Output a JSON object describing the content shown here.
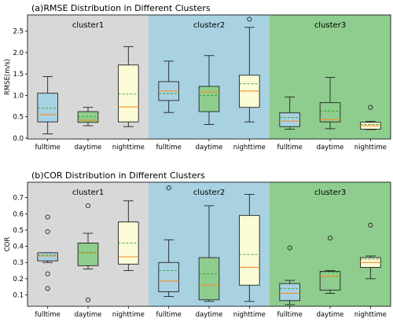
{
  "chart_data": [
    {
      "type": "boxplot",
      "title": "(a)RMSE Distribution in Different Clusters",
      "ylabel": "RMSE(m/s)",
      "ylim": [
        -0.02,
        2.88
      ],
      "yticks": [
        "0.0",
        "0.5",
        "1.0",
        "1.5",
        "2.0",
        "2.5"
      ],
      "categories": [
        "fulltime",
        "daytime",
        "nighttime",
        "fulltime",
        "daytime",
        "nighttime",
        "fulltime",
        "daytime",
        "nighttime"
      ],
      "clusters": [
        {
          "name": "cluster1",
          "background": "#d8d8d8"
        },
        {
          "name": "cluster2",
          "background": "#a8d2e2"
        },
        {
          "name": "cluster3",
          "background": "#8ecd8e"
        }
      ],
      "box_colors": [
        "#a8d2e2",
        "#8ecd8e",
        "#fbfbd6",
        "#a8d2e2",
        "#8ecd8e",
        "#fbfbd6",
        "#a8d2e2",
        "#8ecd8e",
        "#fbfbd6"
      ],
      "boxes": [
        {
          "whislo": 0.1,
          "q1": 0.38,
          "med": 0.55,
          "q3": 1.05,
          "whishi": 1.44,
          "mean": 0.7,
          "fliers": []
        },
        {
          "whislo": 0.29,
          "q1": 0.37,
          "med": 0.42,
          "q3": 0.62,
          "whishi": 0.72,
          "mean": 0.5,
          "fliers": []
        },
        {
          "whislo": 0.27,
          "q1": 0.38,
          "med": 0.73,
          "q3": 1.71,
          "whishi": 2.14,
          "mean": 1.03,
          "fliers": []
        },
        {
          "whislo": 0.6,
          "q1": 0.88,
          "med": 1.1,
          "q3": 1.32,
          "whishi": 1.8,
          "mean": 1.04,
          "fliers": []
        },
        {
          "whislo": 0.32,
          "q1": 0.62,
          "med": 1.08,
          "q3": 1.21,
          "whishi": 1.93,
          "mean": 1.0,
          "fliers": []
        },
        {
          "whislo": 0.38,
          "q1": 0.72,
          "med": 1.1,
          "q3": 1.47,
          "whishi": 2.59,
          "mean": 1.27,
          "fliers": [
            2.78
          ]
        },
        {
          "whislo": 0.21,
          "q1": 0.27,
          "med": 0.4,
          "q3": 0.59,
          "whishi": 0.96,
          "mean": 0.48,
          "fliers": []
        },
        {
          "whislo": 0.22,
          "q1": 0.38,
          "med": 0.43,
          "q3": 0.83,
          "whishi": 1.42,
          "mean": 0.63,
          "fliers": []
        },
        {
          "whislo": 0.2,
          "q1": 0.21,
          "med": 0.29,
          "q3": 0.37,
          "whishi": 0.39,
          "mean": 0.32,
          "fliers": [
            0.72
          ]
        }
      ]
    },
    {
      "type": "boxplot",
      "title": "(b)COR Distribution in Different Clusters",
      "ylabel": "COR",
      "ylim": [
        0.03,
        0.795
      ],
      "yticks": [
        "0.1",
        "0.2",
        "0.3",
        "0.4",
        "0.5",
        "0.6",
        "0.7"
      ],
      "categories": [
        "fulltime",
        "daytime",
        "nighttime",
        "fulltime",
        "daytime",
        "nighttime",
        "fulltime",
        "daytime",
        "nighttime"
      ],
      "clusters": [
        {
          "name": "cluster1",
          "background": "#d8d8d8"
        },
        {
          "name": "cluster2",
          "background": "#a8d2e2"
        },
        {
          "name": "cluster3",
          "background": "#8ecd8e"
        }
      ],
      "box_colors": [
        "#a8d2e2",
        "#8ecd8e",
        "#fbfbd6",
        "#a8d2e2",
        "#8ecd8e",
        "#fbfbd6",
        "#a8d2e2",
        "#8ecd8e",
        "#fbfbd6"
      ],
      "boxes": [
        {
          "whislo": 0.3,
          "q1": 0.31,
          "med": 0.34,
          "q3": 0.36,
          "whishi": 0.36,
          "mean": 0.345,
          "fliers": [
            0.58,
            0.49,
            0.23,
            0.14
          ]
        },
        {
          "whislo": 0.26,
          "q1": 0.28,
          "med": 0.36,
          "q3": 0.42,
          "whishi": 0.48,
          "mean": 0.36,
          "fliers": [
            0.65,
            0.07
          ]
        },
        {
          "whislo": 0.25,
          "q1": 0.29,
          "med": 0.335,
          "q3": 0.55,
          "whishi": 0.68,
          "mean": 0.42,
          "fliers": []
        },
        {
          "whislo": 0.09,
          "q1": 0.12,
          "med": 0.185,
          "q3": 0.3,
          "whishi": 0.44,
          "mean": 0.25,
          "fliers": [
            0.76
          ]
        },
        {
          "whislo": 0.06,
          "q1": 0.07,
          "med": 0.16,
          "q3": 0.33,
          "whishi": 0.65,
          "mean": 0.23,
          "fliers": []
        },
        {
          "whislo": 0.06,
          "q1": 0.16,
          "med": 0.27,
          "q3": 0.59,
          "whishi": 0.72,
          "mean": 0.35,
          "fliers": []
        },
        {
          "whislo": 0.04,
          "q1": 0.065,
          "med": 0.11,
          "q3": 0.17,
          "whishi": 0.19,
          "mean": 0.14,
          "fliers": [
            0.39
          ]
        },
        {
          "whislo": 0.11,
          "q1": 0.13,
          "med": 0.215,
          "q3": 0.245,
          "whishi": 0.25,
          "mean": 0.24,
          "fliers": [
            0.45
          ]
        },
        {
          "whislo": 0.2,
          "q1": 0.27,
          "med": 0.3,
          "q3": 0.33,
          "whishi": 0.34,
          "mean": 0.32,
          "fliers": [
            0.53
          ]
        }
      ]
    }
  ]
}
